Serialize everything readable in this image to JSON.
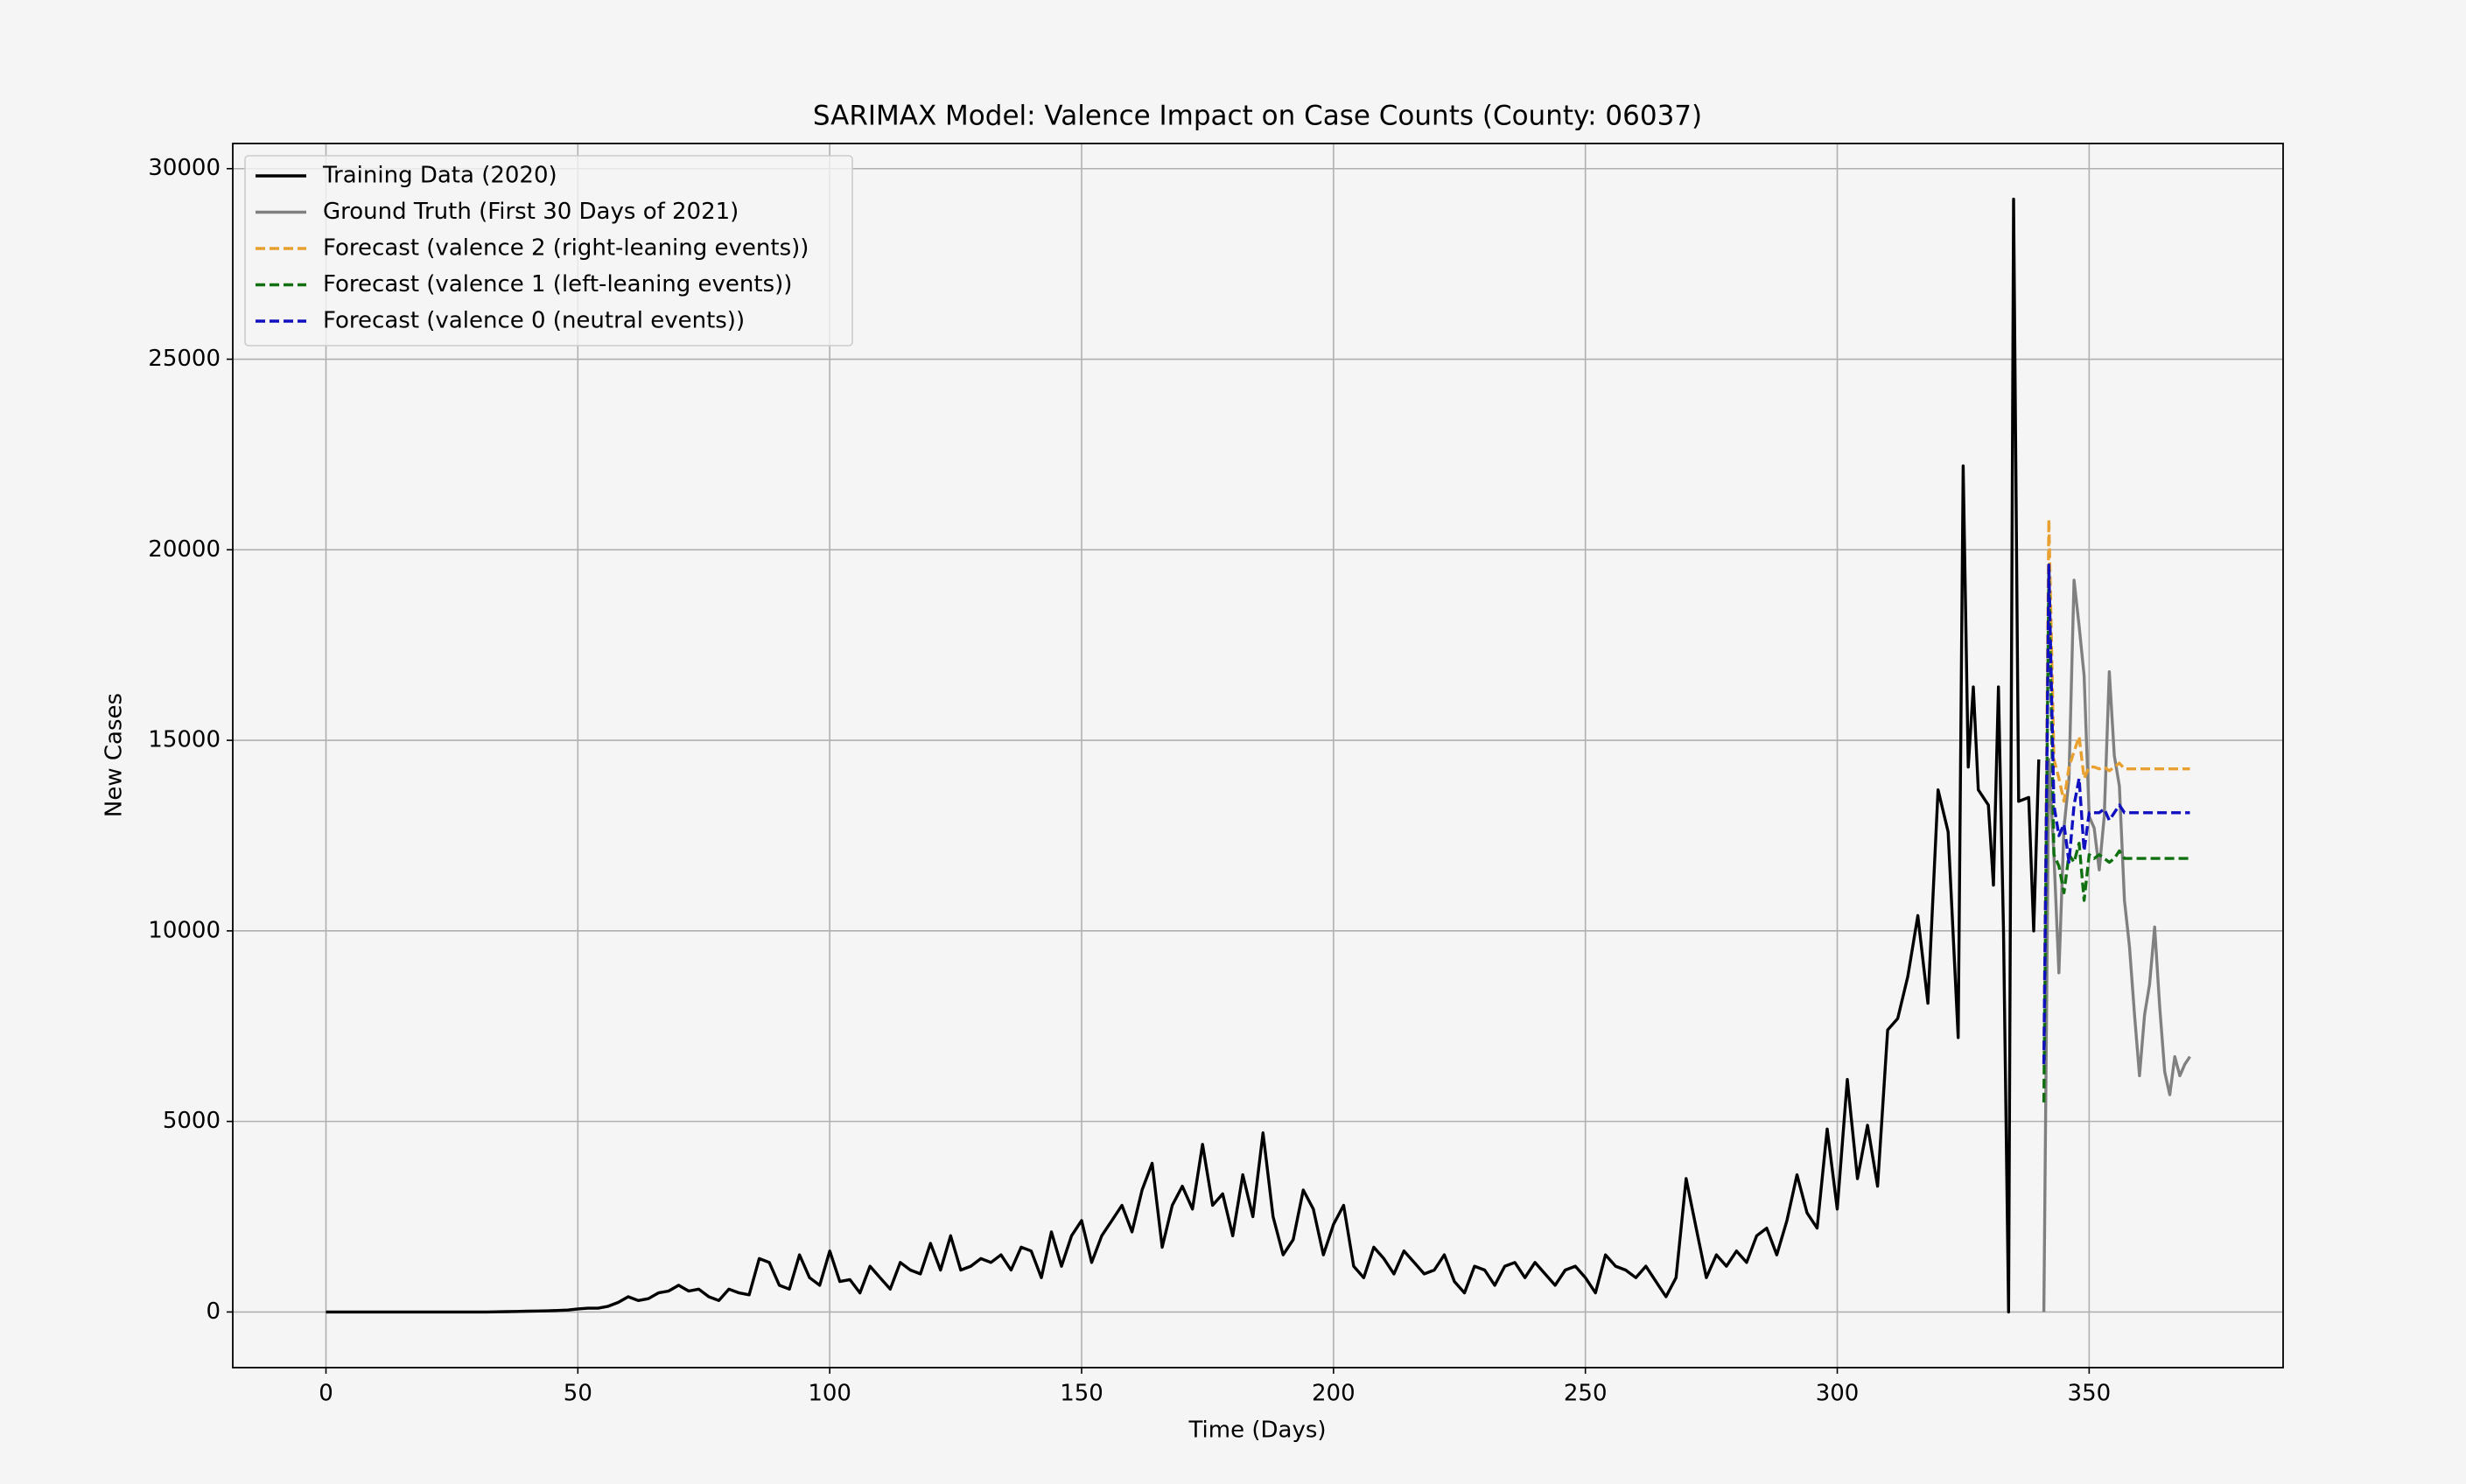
{
  "chart_data": {
    "type": "line",
    "title": "SARIMAX Model: Valence Impact on Case Counts (County: 06037)",
    "x_label": "Time (Days)",
    "y_label": "New Cases",
    "xlim": [
      -18.5,
      388.5
    ],
    "ylim": [
      -1460,
      30660
    ],
    "xticks": [
      0,
      50,
      100,
      150,
      200,
      250,
      300,
      350
    ],
    "yticks": [
      0,
      5000,
      10000,
      15000,
      20000,
      25000,
      30000
    ],
    "grid": true,
    "legend": "upper left",
    "series": [
      {
        "name": "Training Data (2020)",
        "color": "#000000",
        "linestyle": "solid",
        "x": [
          0,
          2,
          4,
          6,
          8,
          10,
          12,
          14,
          16,
          18,
          20,
          22,
          24,
          26,
          28,
          30,
          32,
          34,
          36,
          38,
          40,
          42,
          44,
          46,
          48,
          50,
          52,
          54,
          56,
          58,
          60,
          62,
          64,
          66,
          68,
          70,
          72,
          74,
          76,
          78,
          80,
          82,
          84,
          86,
          88,
          90,
          92,
          94,
          96,
          98,
          100,
          102,
          104,
          106,
          108,
          110,
          112,
          114,
          116,
          118,
          120,
          122,
          124,
          126,
          128,
          130,
          132,
          134,
          136,
          138,
          140,
          142,
          144,
          146,
          148,
          150,
          152,
          154,
          156,
          158,
          160,
          162,
          164,
          166,
          168,
          170,
          172,
          174,
          176,
          178,
          180,
          182,
          184,
          186,
          188,
          190,
          192,
          194,
          196,
          198,
          200,
          202,
          204,
          206,
          208,
          210,
          212,
          214,
          216,
          218,
          220,
          222,
          224,
          226,
          228,
          230,
          232,
          234,
          236,
          238,
          240,
          242,
          244,
          246,
          248,
          250,
          252,
          254,
          256,
          258,
          260,
          262,
          264,
          266,
          268,
          270,
          272,
          274,
          276,
          278,
          280,
          282,
          284,
          286,
          288,
          290,
          292,
          294,
          296,
          298,
          300,
          302,
          304,
          306,
          308,
          310,
          312,
          314,
          316,
          318,
          320,
          322,
          324,
          325,
          326,
          327,
          328,
          330,
          331,
          332,
          333,
          334,
          335,
          336,
          338,
          339,
          340
        ],
        "values": [
          0,
          0,
          0,
          0,
          0,
          0,
          0,
          0,
          0,
          0,
          0,
          0,
          0,
          0,
          0,
          0,
          0,
          5,
          10,
          15,
          20,
          25,
          30,
          40,
          50,
          80,
          100,
          100,
          150,
          250,
          400,
          300,
          350,
          500,
          550,
          700,
          550,
          600,
          400,
          300,
          600,
          500,
          450,
          1400,
          1300,
          700,
          600,
          1500,
          900,
          700,
          1600,
          800,
          850,
          500,
          1200,
          900,
          600,
          1300,
          1100,
          1000,
          1800,
          1100,
          2000,
          1100,
          1200,
          1400,
          1300,
          1500,
          1100,
          1700,
          1600,
          900,
          2100,
          1200,
          2000,
          2400,
          1300,
          2000,
          2400,
          2800,
          2100,
          3200,
          3900,
          1700,
          2800,
          3300,
          2700,
          4400,
          2800,
          3100,
          2000,
          3600,
          2500,
          4700,
          2500,
          1500,
          1900,
          3200,
          2700,
          1500,
          2300,
          2800,
          1200,
          900,
          1700,
          1400,
          1000,
          1600,
          1300,
          1000,
          1100,
          1500,
          800,
          500,
          1200,
          1100,
          700,
          1200,
          1300,
          900,
          1300,
          1000,
          700,
          1100,
          1200,
          900,
          500,
          1500,
          1200,
          1100,
          900,
          1200,
          800,
          400,
          900,
          3500,
          2200,
          900,
          1500,
          1200,
          1600,
          1300,
          2000,
          2200,
          1500,
          2400,
          3600,
          2600,
          2200,
          4800,
          2700,
          6100,
          3500,
          4900,
          3300,
          7400,
          7700,
          8800,
          10400,
          8100,
          13700,
          12600,
          7200,
          22200,
          14300,
          16400,
          13700,
          13300,
          11200,
          16400,
          10000,
          0,
          29200,
          13400,
          13500,
          10000,
          14500
        ]
      },
      {
        "name": "Ground Truth (First 30 Days of 2021)",
        "color": "#808080",
        "linestyle": "solid",
        "x": [
          341,
          342,
          343,
          344,
          345,
          346,
          347,
          348,
          349,
          350,
          351,
          352,
          353,
          354,
          355,
          356,
          357,
          358,
          359,
          360,
          361,
          362,
          363,
          364,
          365,
          366,
          367,
          368,
          369,
          370
        ],
        "values": [
          0,
          14500,
          12000,
          8900,
          12700,
          14000,
          19200,
          18000,
          16700,
          13000,
          12700,
          11600,
          13000,
          16800,
          14600,
          13800,
          10800,
          9600,
          7800,
          6200,
          7800,
          8600,
          10100,
          8000,
          6300,
          5700,
          6700,
          6200,
          6500,
          6700
        ]
      },
      {
        "name": "Forecast (valence 2 (right-leaning events))",
        "color": "#e8a030",
        "linestyle": "dashed",
        "x": [
          341,
          342,
          343,
          344,
          345,
          346,
          347,
          348,
          349,
          350,
          351,
          352,
          353,
          354,
          355,
          356,
          357,
          358,
          359,
          360,
          361,
          362,
          363,
          364,
          365,
          366,
          367,
          368,
          369,
          370
        ],
        "values": [
          6500,
          20800,
          14500,
          14000,
          13400,
          14300,
          14700,
          15100,
          14000,
          14300,
          14300,
          14250,
          14300,
          14200,
          14300,
          14400,
          14250,
          14250,
          14250,
          14250,
          14250,
          14250,
          14250,
          14250,
          14250,
          14250,
          14250,
          14250,
          14250,
          14250
        ]
      },
      {
        "name": "Forecast (valence 1 (left-leaning events))",
        "color": "#107010",
        "linestyle": "dashed",
        "x": [
          341,
          342,
          343,
          344,
          345,
          346,
          347,
          348,
          349,
          350,
          351,
          352,
          353,
          354,
          355,
          356,
          357,
          358,
          359,
          360,
          361,
          362,
          363,
          364,
          365,
          366,
          367,
          368,
          369,
          370
        ],
        "values": [
          5500,
          19500,
          12000,
          11700,
          11000,
          12000,
          11800,
          12300,
          10800,
          12000,
          11900,
          12000,
          11900,
          11800,
          11900,
          12100,
          11900,
          11900,
          11900,
          11900,
          11900,
          11900,
          11900,
          11900,
          11900,
          11900,
          11900,
          11900,
          11900,
          11900
        ]
      },
      {
        "name": "Forecast (valence 0 (neutral events))",
        "color": "#1010c0",
        "linestyle": "dashed",
        "x": [
          341,
          342,
          343,
          344,
          345,
          346,
          347,
          348,
          349,
          350,
          351,
          352,
          353,
          354,
          355,
          356,
          357,
          358,
          359,
          360,
          361,
          362,
          363,
          364,
          365,
          366,
          367,
          368,
          369,
          370
        ],
        "values": [
          6500,
          19600,
          13300,
          12500,
          12800,
          11800,
          13300,
          14000,
          12100,
          13100,
          13100,
          13100,
          13200,
          12900,
          13100,
          13300,
          13100,
          13100,
          13100,
          13100,
          13100,
          13100,
          13100,
          13100,
          13100,
          13100,
          13100,
          13100,
          13100,
          13100
        ]
      }
    ]
  }
}
